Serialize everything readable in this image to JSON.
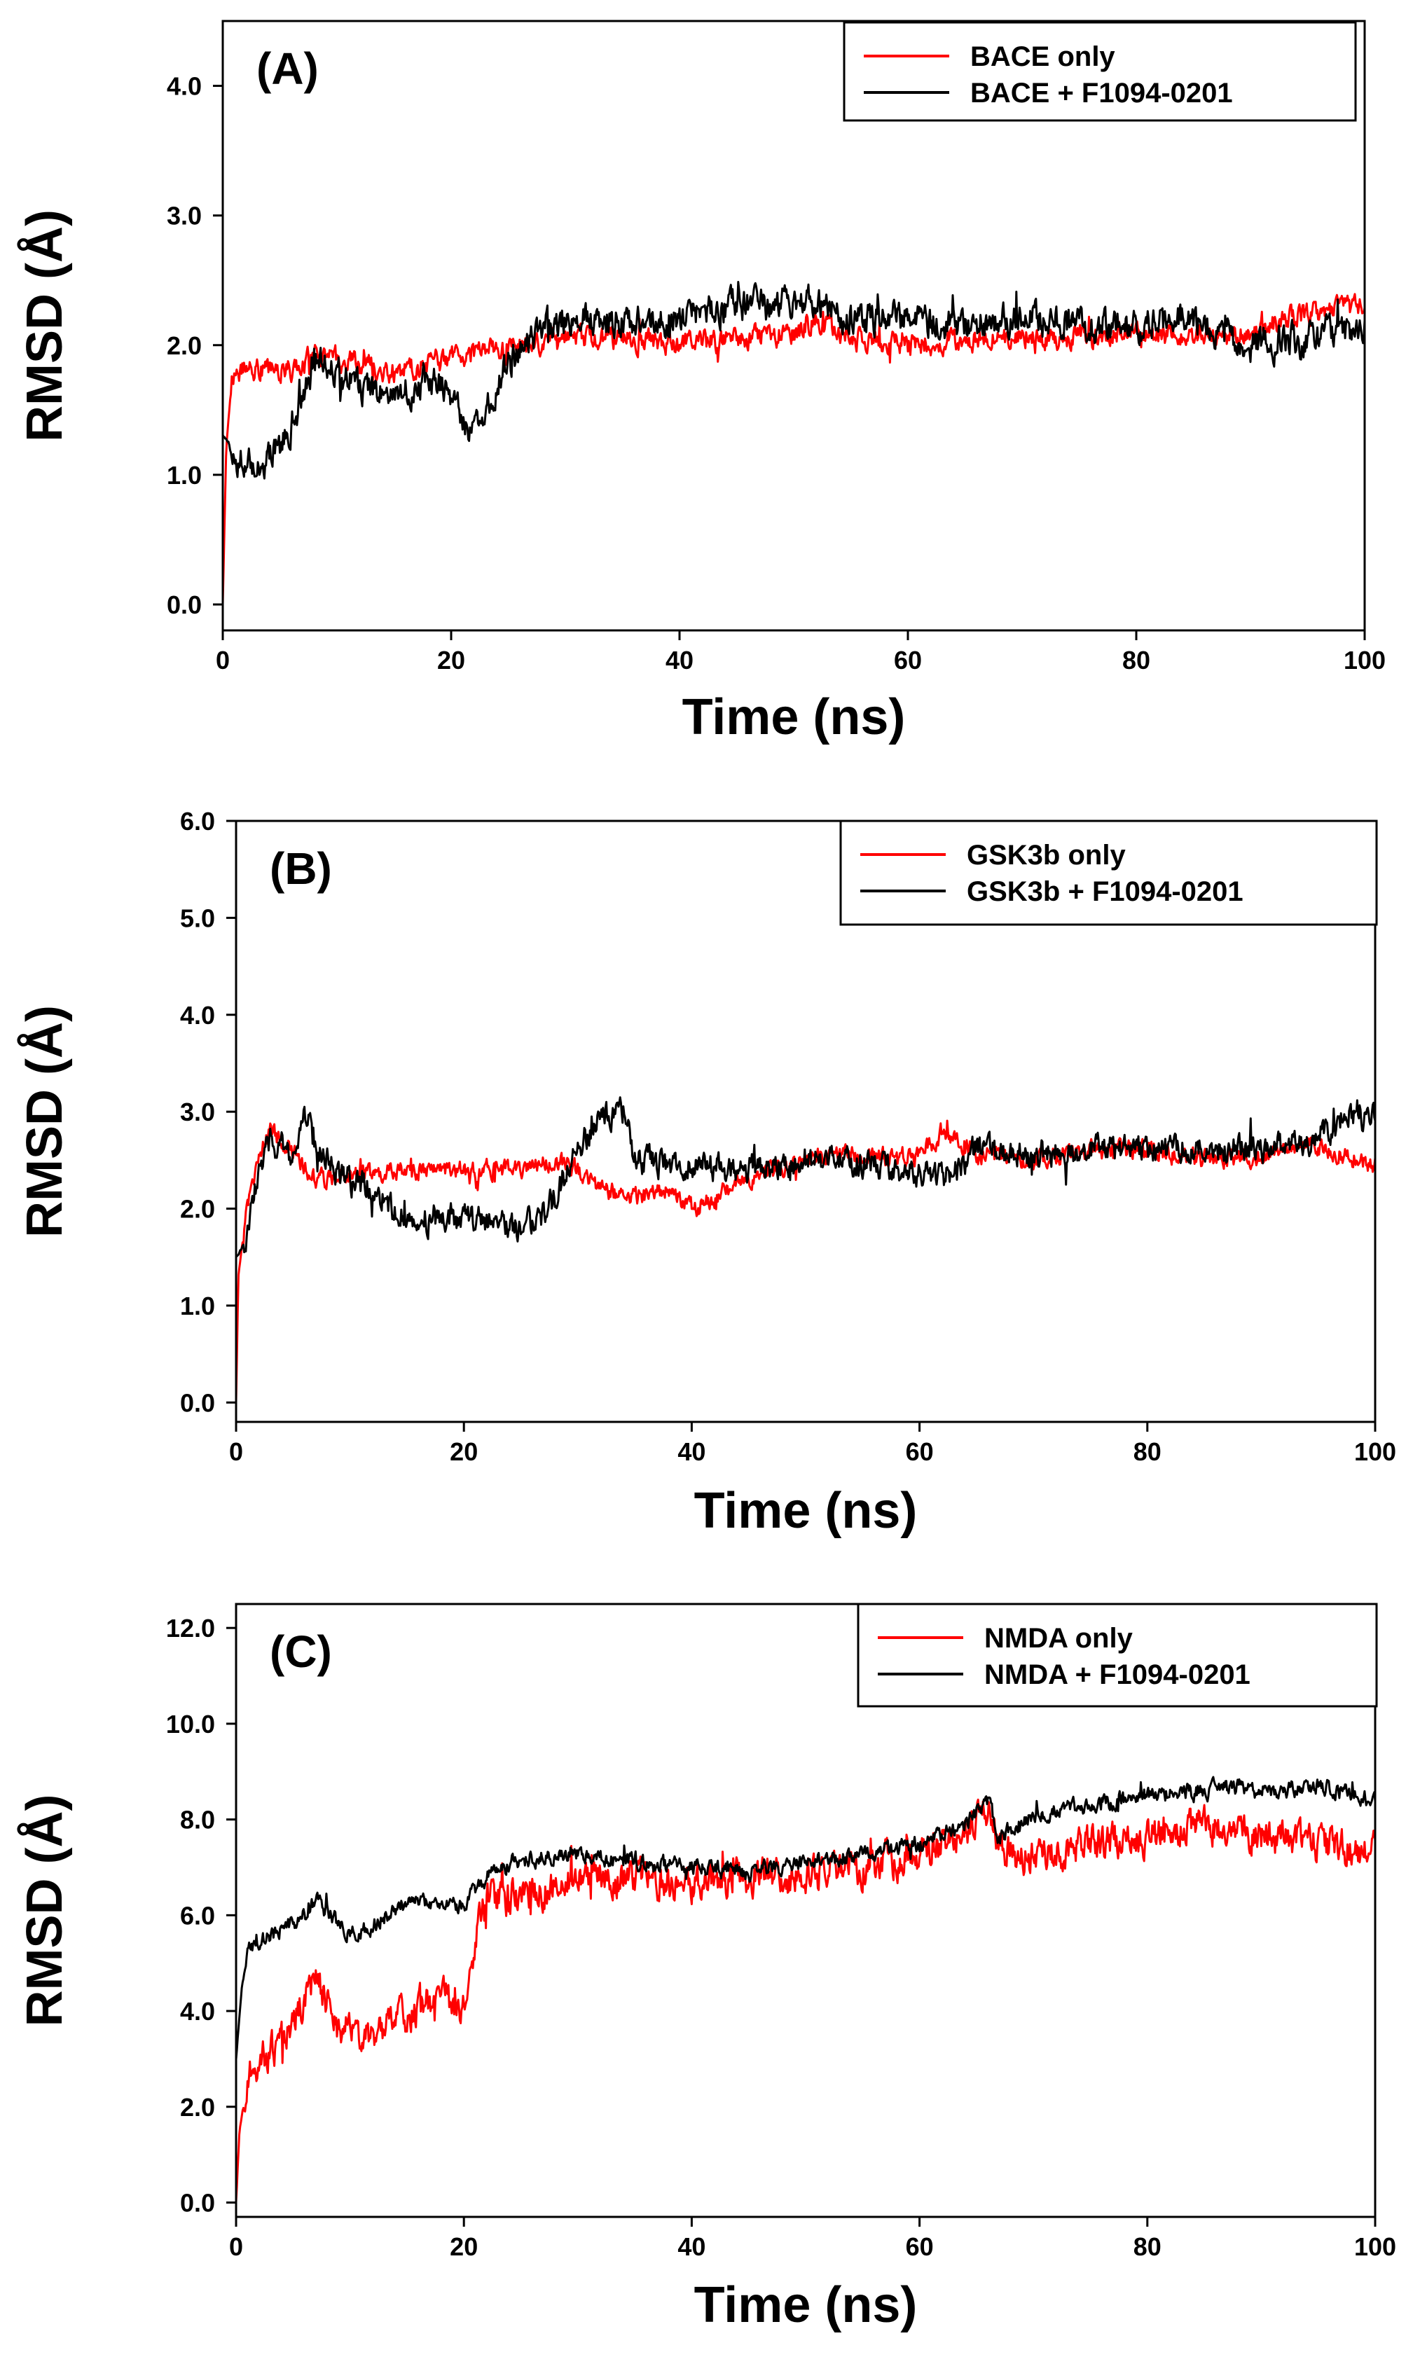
{
  "chart_data": [
    {
      "type": "line",
      "panel_label": "(A)",
      "xlabel": "Time (ns)",
      "ylabel": "RMSD (Å)",
      "xlim": [
        0,
        100
      ],
      "ylim": [
        -0.2,
        4.5
      ],
      "xticks": [
        0,
        20,
        40,
        60,
        80,
        100
      ],
      "yticks": [
        0,
        1,
        2,
        3,
        4
      ],
      "xtick_labels": [
        "0",
        "20",
        "40",
        "60",
        "80",
        "100"
      ],
      "ytick_labels": [
        "0.0",
        "1.0",
        "2.0",
        "3.0",
        "4.0"
      ],
      "legend_position": "top-right",
      "series": [
        {
          "name": "BACE only",
          "color": "#ff0000",
          "x": [
            0,
            0.3,
            0.8,
            2,
            4,
            6,
            8,
            10,
            12,
            15,
            18,
            20,
            22,
            25,
            28,
            30,
            35,
            40,
            45,
            50,
            52,
            55,
            60,
            65,
            70,
            75,
            80,
            85,
            90,
            95,
            100
          ],
          "y": [
            0,
            1.2,
            1.75,
            1.85,
            1.8,
            1.8,
            1.95,
            1.9,
            1.85,
            1.8,
            1.85,
            1.9,
            1.95,
            1.95,
            2.0,
            2.05,
            2.05,
            2.0,
            2.05,
            2.1,
            2.2,
            2.05,
            2.0,
            2.05,
            2.05,
            2.05,
            2.1,
            2.05,
            2.1,
            2.25,
            2.3
          ],
          "noise": 0.07
        },
        {
          "name": "BACE + F1094-0201",
          "color": "#000000",
          "x": [
            0,
            0.5,
            1,
            2,
            3,
            5,
            7,
            8,
            10,
            12,
            15,
            18,
            20,
            21,
            22,
            23,
            25,
            27,
            28,
            30,
            35,
            40,
            45,
            50,
            52,
            55,
            60,
            65,
            70,
            75,
            80,
            85,
            90,
            95,
            100
          ],
          "y": [
            1.3,
            1.25,
            1.15,
            1.1,
            1.1,
            1.2,
            1.6,
            1.9,
            1.8,
            1.65,
            1.6,
            1.75,
            1.6,
            1.4,
            1.35,
            1.5,
            1.85,
            2.05,
            2.15,
            2.2,
            2.2,
            2.2,
            2.3,
            2.3,
            2.35,
            2.2,
            2.2,
            2.15,
            2.2,
            2.15,
            2.15,
            2.2,
            2.0,
            2.05,
            2.15
          ],
          "noise": 0.1
        }
      ]
    },
    {
      "type": "line",
      "panel_label": "(B)",
      "xlabel": "Time (ns)",
      "ylabel": "RMSD (Å)",
      "xlim": [
        0,
        100
      ],
      "ylim": [
        -0.2,
        6.0
      ],
      "xticks": [
        0,
        20,
        40,
        60,
        80,
        100
      ],
      "yticks": [
        0,
        1,
        2,
        3,
        4,
        5,
        6
      ],
      "xtick_labels": [
        "0",
        "20",
        "40",
        "60",
        "80",
        "100"
      ],
      "ytick_labels": [
        "0.0",
        "1.0",
        "2.0",
        "3.0",
        "4.0",
        "5.0",
        "6.0"
      ],
      "legend_position": "top-right",
      "series": [
        {
          "name": "GSK3b only",
          "color": "#ff0000",
          "x": [
            0,
            0.2,
            0.5,
            1,
            2,
            3,
            5,
            7,
            10,
            15,
            20,
            25,
            28,
            30,
            32,
            35,
            38,
            40,
            45,
            50,
            55,
            60,
            62,
            65,
            70,
            75,
            80,
            85,
            90,
            95,
            100
          ],
          "y": [
            0,
            1.3,
            1.6,
            2.0,
            2.5,
            2.8,
            2.6,
            2.3,
            2.35,
            2.4,
            2.4,
            2.4,
            2.5,
            2.4,
            2.2,
            2.1,
            2.2,
            2.0,
            2.3,
            2.5,
            2.55,
            2.55,
            2.8,
            2.55,
            2.5,
            2.6,
            2.6,
            2.5,
            2.55,
            2.65,
            2.45
          ],
          "noise": 0.08
        },
        {
          "name": "GSK3b + F1094-0201",
          "color": "#000000",
          "x": [
            0,
            1,
            2,
            3,
            5,
            6,
            7,
            10,
            12,
            15,
            20,
            25,
            27,
            30,
            32,
            34,
            35,
            40,
            45,
            50,
            55,
            60,
            62,
            65,
            70,
            75,
            80,
            85,
            90,
            95,
            98,
            100
          ],
          "y": [
            1.5,
            1.7,
            2.4,
            2.7,
            2.6,
            3.1,
            2.6,
            2.3,
            2.2,
            1.9,
            1.9,
            1.8,
            1.9,
            2.6,
            3.0,
            3.0,
            2.5,
            2.45,
            2.4,
            2.5,
            2.5,
            2.35,
            2.3,
            2.6,
            2.55,
            2.6,
            2.6,
            2.65,
            2.6,
            2.75,
            3.0,
            2.95
          ],
          "noise": 0.12
        }
      ]
    },
    {
      "type": "line",
      "panel_label": "(C)",
      "xlabel": "Time (ns)",
      "ylabel": "RMSD (Å)",
      "xlim": [
        0,
        100
      ],
      "ylim": [
        -0.3,
        12.5
      ],
      "xticks": [
        0,
        20,
        40,
        60,
        80,
        100
      ],
      "yticks": [
        0,
        2,
        4,
        6,
        8,
        10,
        12
      ],
      "xtick_labels": [
        "0",
        "20",
        "40",
        "60",
        "80",
        "100"
      ],
      "ytick_labels": [
        "0.0",
        "2.0",
        "4.0",
        "6.0",
        "8.0",
        "10.0",
        "12.0"
      ],
      "legend_position": "top-right",
      "series": [
        {
          "name": "NMDA only",
          "color": "#ff0000",
          "x": [
            0,
            0.3,
            1,
            2,
            4,
            6,
            7,
            9,
            12,
            15,
            18,
            20,
            21,
            22,
            25,
            30,
            35,
            40,
            45,
            50,
            55,
            60,
            63,
            66,
            67,
            70,
            75,
            80,
            85,
            90,
            95,
            100
          ],
          "y": [
            0,
            1.5,
            2.7,
            3.0,
            3.3,
            4.2,
            4.8,
            3.6,
            3.5,
            3.9,
            4.3,
            4.0,
            5.5,
            6.3,
            6.4,
            6.8,
            6.8,
            6.6,
            6.8,
            6.8,
            7.0,
            7.3,
            7.6,
            8.3,
            7.4,
            7.2,
            7.5,
            7.6,
            7.9,
            7.6,
            7.5,
            7.3
          ],
          "noise": 0.3
        },
        {
          "name": "NMDA + F1094-0201",
          "color": "#000000",
          "x": [
            0,
            0.5,
            1,
            2,
            4,
            6,
            7,
            10,
            12,
            15,
            18,
            20,
            22,
            25,
            30,
            35,
            40,
            45,
            50,
            55,
            60,
            64,
            66,
            67,
            70,
            75,
            80,
            85,
            88,
            90,
            95,
            100
          ],
          "y": [
            3.0,
            4.5,
            5.3,
            5.5,
            5.7,
            6.0,
            6.3,
            5.6,
            5.8,
            6.3,
            6.2,
            6.2,
            6.8,
            7.2,
            7.3,
            7.1,
            7.0,
            6.9,
            7.1,
            7.3,
            7.5,
            7.9,
            8.4,
            7.6,
            8.1,
            8.3,
            8.5,
            8.6,
            8.7,
            8.6,
            8.7,
            8.4
          ],
          "noise": 0.14
        }
      ]
    }
  ]
}
